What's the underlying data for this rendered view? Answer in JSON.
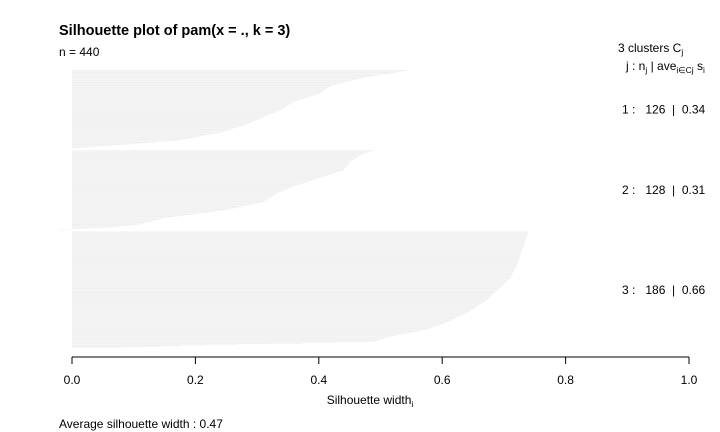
{
  "chart_data": {
    "type": "bar",
    "orientation": "horizontal",
    "title": "Silhouette plot of pam(x = ., k = 3)",
    "n_label": "n = 440",
    "xlabel": "Silhouette width",
    "xlabel_subscript": "i",
    "xlim": [
      0,
      1
    ],
    "xticks": [
      "0.0",
      "0.2",
      "0.4",
      "0.6",
      "0.8",
      "1.0"
    ],
    "header": {
      "clusters_line": "3  clusters  C",
      "clusters_sub": "j",
      "columns_j": "j :  n",
      "columns_j_sub": "j",
      "columns_ave": " | ave",
      "columns_ave_sub": "i∈Cj",
      "columns_s": "  s",
      "columns_s_sub": "i"
    },
    "footer": "Average silhouette width :  0.47",
    "grid": false,
    "legend": "none",
    "colors": {
      "bars": "#eeeeee",
      "text": "#000000",
      "axis": "#000000"
    },
    "clusters": [
      {
        "id": 1,
        "n": 126,
        "avg": 0.34,
        "row_label": "1 :   126  |  0.34",
        "profile": [
          [
            0,
            0.545
          ],
          [
            0.03,
            0.525
          ],
          [
            0.1,
            0.47
          ],
          [
            0.2,
            0.42
          ],
          [
            0.3,
            0.4
          ],
          [
            0.4,
            0.36
          ],
          [
            0.5,
            0.34
          ],
          [
            0.6,
            0.31
          ],
          [
            0.7,
            0.28
          ],
          [
            0.8,
            0.24
          ],
          [
            0.9,
            0.17
          ],
          [
            1,
            0.0
          ]
        ]
      },
      {
        "id": 2,
        "n": 128,
        "avg": 0.31,
        "row_label": "2 :   128  |  0.31",
        "profile": [
          [
            0,
            0.49
          ],
          [
            0.05,
            0.47
          ],
          [
            0.15,
            0.45
          ],
          [
            0.25,
            0.44
          ],
          [
            0.35,
            0.4
          ],
          [
            0.45,
            0.36
          ],
          [
            0.55,
            0.33
          ],
          [
            0.65,
            0.31
          ],
          [
            0.75,
            0.25
          ],
          [
            0.85,
            0.15
          ],
          [
            0.93,
            0.11
          ],
          [
            0.97,
            0.06
          ],
          [
            1,
            -0.02
          ]
        ]
      },
      {
        "id": 3,
        "n": 186,
        "avg": 0.66,
        "row_label": "3 :   186  |  0.66",
        "profile": [
          [
            0,
            0.74
          ],
          [
            0.15,
            0.73
          ],
          [
            0.3,
            0.72
          ],
          [
            0.4,
            0.71
          ],
          [
            0.5,
            0.69
          ],
          [
            0.6,
            0.67
          ],
          [
            0.7,
            0.64
          ],
          [
            0.8,
            0.6
          ],
          [
            0.85,
            0.57
          ],
          [
            0.9,
            0.52
          ],
          [
            0.95,
            0.49
          ],
          [
            0.98,
            0.2
          ],
          [
            1,
            0.08
          ]
        ]
      }
    ]
  }
}
